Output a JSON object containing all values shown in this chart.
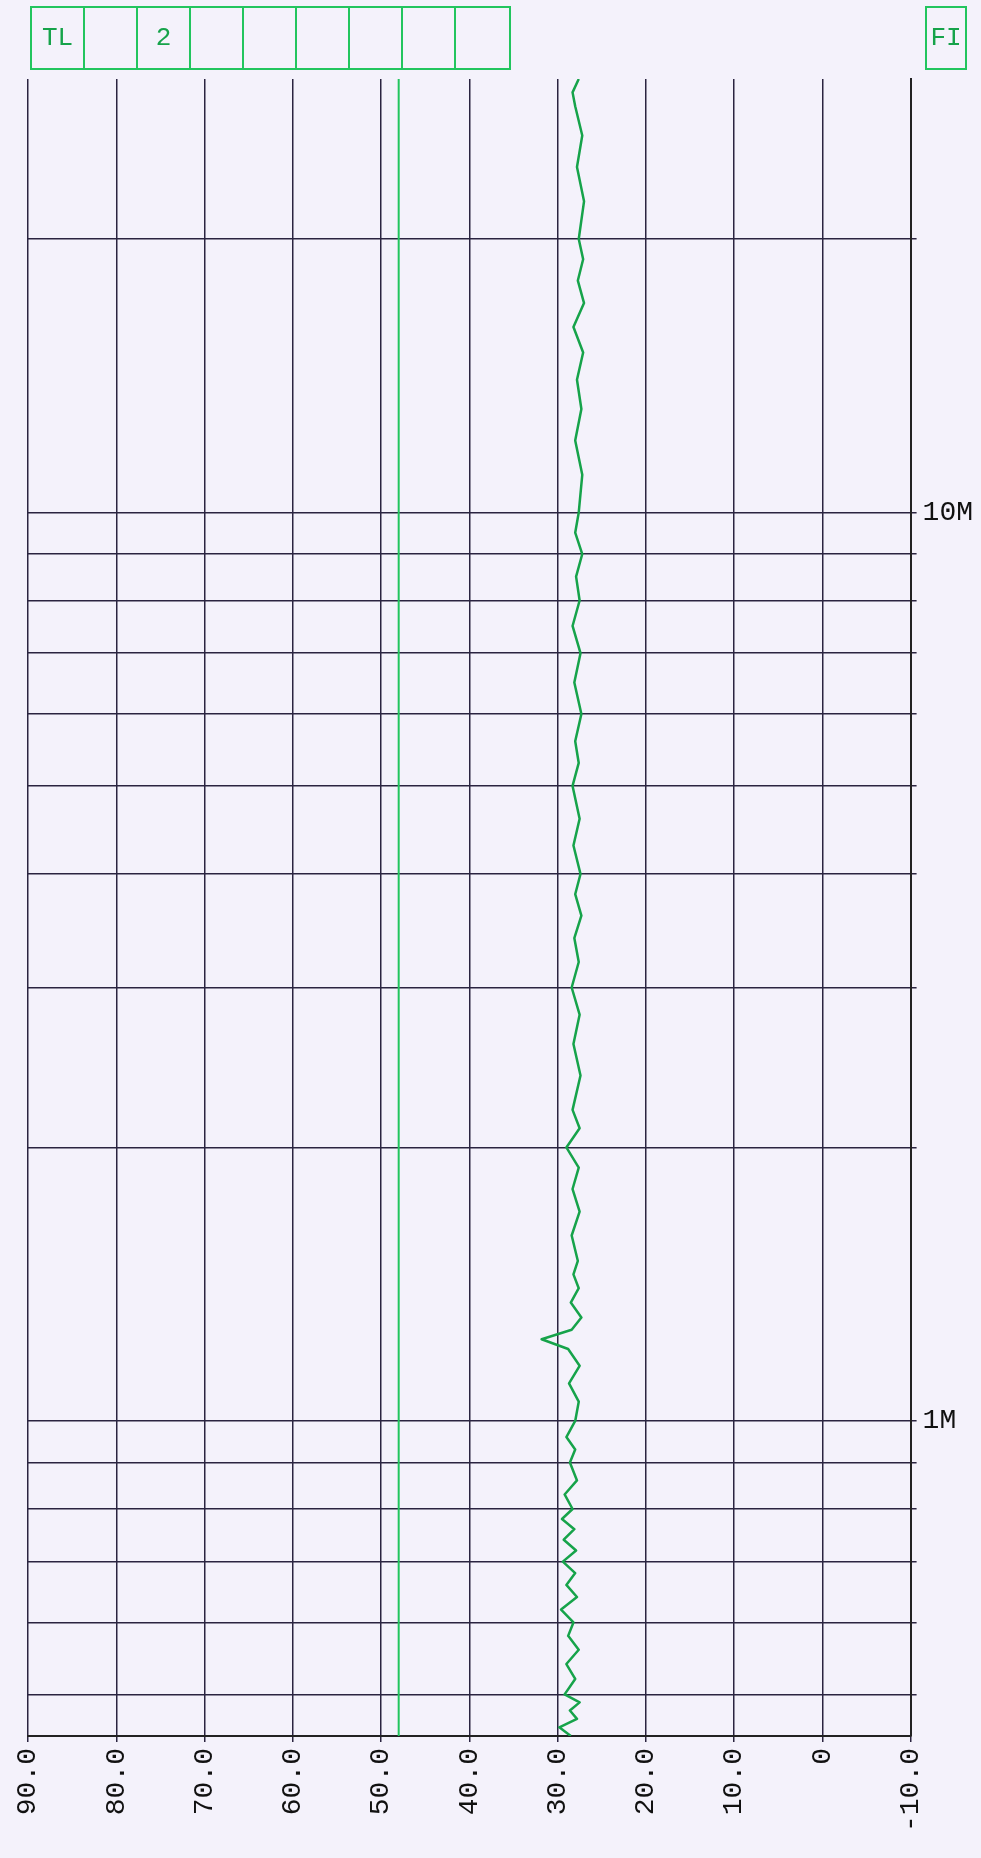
{
  "chart_data": {
    "type": "line",
    "orientation": "horizontal",
    "annotations": [
      "TL",
      "2",
      "FI"
    ],
    "xlim": [
      90,
      -10
    ],
    "xticks": [
      {
        "value": 90,
        "label": "90.0"
      },
      {
        "value": 80,
        "label": "80.0"
      },
      {
        "value": 70,
        "label": "70.0"
      },
      {
        "value": 60,
        "label": "60.0"
      },
      {
        "value": 50,
        "label": "50.0"
      },
      {
        "value": 40,
        "label": "40.0"
      },
      {
        "value": 30,
        "label": "30.0"
      },
      {
        "value": 20,
        "label": "20.0"
      },
      {
        "value": 10,
        "label": "10.0"
      },
      {
        "value": 0,
        "label": "0"
      },
      {
        "value": -10,
        "label": "-10.0"
      }
    ],
    "ylim": [
      450000,
      30000000
    ],
    "yticks": [
      {
        "value": 500000,
        "label": null
      },
      {
        "value": 600000,
        "label": null
      },
      {
        "value": 700000,
        "label": null
      },
      {
        "value": 800000,
        "label": null
      },
      {
        "value": 900000,
        "label": null
      },
      {
        "value": 1000000,
        "label": "1M"
      },
      {
        "value": 2000000,
        "label": null
      },
      {
        "value": 3000000,
        "label": null
      },
      {
        "value": 4000000,
        "label": null
      },
      {
        "value": 5000000,
        "label": null
      },
      {
        "value": 6000000,
        "label": null
      },
      {
        "value": 7000000,
        "label": null
      },
      {
        "value": 8000000,
        "label": null
      },
      {
        "value": 9000000,
        "label": null
      },
      {
        "value": 10000000,
        "label": "10M"
      },
      {
        "value": 20000000,
        "label": null
      }
    ],
    "log": "y",
    "grid": true,
    "ref_lines": [
      {
        "axis": "x",
        "value": 48,
        "color": "#22c55e"
      }
    ],
    "series": [
      {
        "color": "#16a34a",
        "x": [
          450000,
          460000,
          470000,
          480000,
          490000,
          500000,
          520000,
          540000,
          560000,
          580000,
          600000,
          620000,
          640000,
          660000,
          680000,
          700000,
          720000,
          740000,
          760000,
          780000,
          800000,
          830000,
          860000,
          900000,
          930000,
          960000,
          1000000,
          1050000,
          1100000,
          1150000,
          1200000,
          1230000,
          1260000,
          1300000,
          1350000,
          1400000,
          1450000,
          1500000,
          1600000,
          1700000,
          1800000,
          1900000,
          2000000,
          2100000,
          2200000,
          2400000,
          2600000,
          2800000,
          3000000,
          3200000,
          3400000,
          3600000,
          3800000,
          4000000,
          4300000,
          4600000,
          5000000,
          5300000,
          5600000,
          6000000,
          6500000,
          7000000,
          7500000,
          8000000,
          8500000,
          9000000,
          9500000,
          10000000,
          11000000,
          12000000,
          13000000,
          14000000,
          15000000,
          16000000,
          17000000,
          18000000,
          19000000,
          20000000,
          22000000,
          24000000,
          26000000,
          28000000,
          29000000,
          30000000
        ],
        "values": [
          28.5,
          29.8,
          27.8,
          28.6,
          27.5,
          29.2,
          28.0,
          29.0,
          27.6,
          28.8,
          28.2,
          29.6,
          27.8,
          29.0,
          28.0,
          29.4,
          27.9,
          29.3,
          28.1,
          29.5,
          28.3,
          29.2,
          27.8,
          28.6,
          28.0,
          29.0,
          28.0,
          27.6,
          28.7,
          27.5,
          28.8,
          31.8,
          28.4,
          27.3,
          28.5,
          27.6,
          28.2,
          27.7,
          28.4,
          27.5,
          28.3,
          27.6,
          29.0,
          27.5,
          28.3,
          27.4,
          28.2,
          27.5,
          28.4,
          27.6,
          28.1,
          27.3,
          28.0,
          27.4,
          28.2,
          27.5,
          28.3,
          27.6,
          28.0,
          27.3,
          28.1,
          27.4,
          28.3,
          27.5,
          27.9,
          27.2,
          28.0,
          27.6,
          27.2,
          28.0,
          27.3,
          27.8,
          27.1,
          28.2,
          27.0,
          27.7,
          27.1,
          27.6,
          27.0,
          27.8,
          27.2,
          28.0,
          28.3,
          27.6
        ]
      }
    ]
  }
}
